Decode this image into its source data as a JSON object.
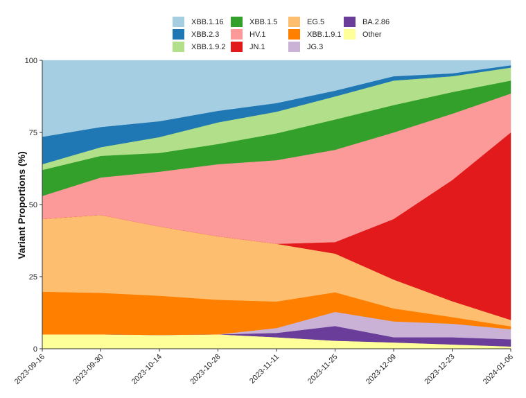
{
  "chart_data": {
    "type": "area",
    "stacking": "percent",
    "title": "",
    "xlabel": "",
    "ylabel": "Variant Proportions (%)",
    "ylim": [
      0,
      100
    ],
    "yticks": [
      0,
      25,
      50,
      75,
      100
    ],
    "categories": [
      "2023-09-16",
      "2023-09-30",
      "2023-10-14",
      "2023-10-28",
      "2023-11-11",
      "2023-11-25",
      "2023-12-09",
      "2023-12-23",
      "2024-01-06"
    ],
    "legend_position": "top",
    "series": [
      {
        "name": "Other",
        "color": "#ffff99",
        "values": [
          5,
          5,
          4.8,
          5,
          4,
          2.8,
          2.2,
          1.5,
          0.8
        ]
      },
      {
        "name": "BA.2.86",
        "color": "#6a3d9a",
        "values": [
          0,
          0,
          0,
          0,
          1.5,
          5.1,
          1.8,
          2.5,
          2.5
        ]
      },
      {
        "name": "JG.3",
        "color": "#cab2d6",
        "values": [
          0,
          0,
          0,
          0,
          1.7,
          4.9,
          5.5,
          4.7,
          3.5
        ]
      },
      {
        "name": "XBB.1.9.1",
        "color": "#ff7f00",
        "values": [
          14.8,
          14.4,
          13.6,
          12,
          9.2,
          6.8,
          4.5,
          2.3,
          1
        ]
      },
      {
        "name": "EG.5",
        "color": "#fdbf6f",
        "values": [
          25.2,
          27,
          24,
          22,
          20,
          13.4,
          10,
          5.5,
          2.2
        ]
      },
      {
        "name": "JN.1",
        "color": "#e31a1c",
        "values": [
          0,
          0,
          0,
          0,
          0,
          4,
          21,
          42,
          65
        ]
      },
      {
        "name": "HV.1",
        "color": "#fb9a99",
        "values": [
          8,
          13,
          19,
          25,
          29,
          32,
          30,
          23,
          13.5
        ]
      },
      {
        "name": "XBB.1.5",
        "color": "#33a02c",
        "values": [
          9,
          7.5,
          6.5,
          7,
          9.3,
          10.5,
          9.5,
          7.5,
          4.5
        ]
      },
      {
        "name": "XBB.1.9.2",
        "color": "#b2df8a",
        "values": [
          2,
          3,
          5.5,
          7.5,
          7.5,
          8,
          8.5,
          5.5,
          4.5
        ]
      },
      {
        "name": "XBB.2.3",
        "color": "#1f78b4",
        "values": [
          9.5,
          7,
          5.5,
          4,
          3,
          2,
          1.5,
          1,
          0.8
        ]
      },
      {
        "name": "XBB.1.16",
        "color": "#a6cee3",
        "values": [
          26.5,
          23.1,
          21.1,
          17.5,
          14.8,
          10.5,
          5.5,
          4.5,
          1.7
        ]
      }
    ],
    "legend": [
      {
        "name": "XBB.1.16",
        "color": "#a6cee3"
      },
      {
        "name": "XBB.2.3",
        "color": "#1f78b4"
      },
      {
        "name": "XBB.1.9.2",
        "color": "#b2df8a"
      },
      {
        "name": "XBB.1.5",
        "color": "#33a02c"
      },
      {
        "name": "HV.1",
        "color": "#fb9a99"
      },
      {
        "name": "JN.1",
        "color": "#e31a1c"
      },
      {
        "name": "EG.5",
        "color": "#fdbf6f"
      },
      {
        "name": "XBB.1.9.1",
        "color": "#ff7f00"
      },
      {
        "name": "JG.3",
        "color": "#cab2d6"
      },
      {
        "name": "BA.2.86",
        "color": "#6a3d9a"
      },
      {
        "name": "Other",
        "color": "#ffff99"
      }
    ]
  }
}
